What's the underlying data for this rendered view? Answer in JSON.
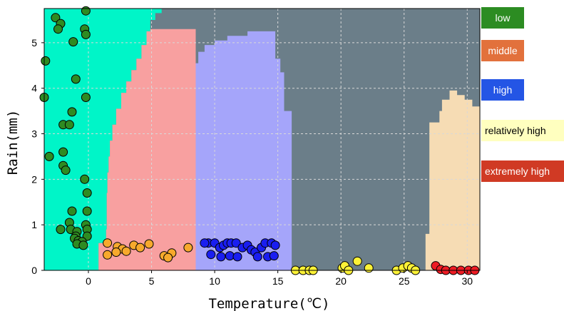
{
  "chart_data": {
    "type": "scatter",
    "title": "",
    "xlabel": "Temperature(℃)",
    "ylabel": "Rain(mm)",
    "xlim": [
      -3.5,
      31
    ],
    "ylim": [
      0,
      5.75
    ],
    "xticks": [
      0,
      5,
      10,
      15,
      20,
      25,
      30
    ],
    "yticks": [
      0,
      1,
      2,
      3,
      4,
      5
    ],
    "grid": true,
    "background_color": "#6b7e89",
    "legend": "right",
    "regions": [
      {
        "name": "low",
        "color": "#00f5c8",
        "boundary": [
          [
            -3.5,
            0
          ],
          [
            -3.5,
            5.75
          ],
          [
            5.8,
            5.75
          ],
          [
            5.8,
            5.65
          ],
          [
            5.3,
            5.65
          ],
          [
            5.3,
            5.5
          ],
          [
            4.9,
            5.5
          ],
          [
            4.9,
            5.25
          ],
          [
            4.6,
            5.25
          ],
          [
            4.6,
            4.95
          ],
          [
            4.2,
            4.95
          ],
          [
            4.2,
            4.65
          ],
          [
            3.8,
            4.65
          ],
          [
            3.8,
            4.4
          ],
          [
            3.4,
            4.4
          ],
          [
            3.4,
            4.15
          ],
          [
            3.0,
            4.15
          ],
          [
            3.0,
            3.9
          ],
          [
            2.6,
            3.9
          ],
          [
            2.6,
            3.55
          ],
          [
            2.2,
            3.55
          ],
          [
            2.2,
            3.2
          ],
          [
            1.9,
            3.2
          ],
          [
            1.9,
            2.85
          ],
          [
            1.7,
            2.85
          ],
          [
            1.7,
            2.5
          ],
          [
            1.6,
            2.5
          ],
          [
            1.6,
            2.15
          ],
          [
            1.5,
            2.15
          ],
          [
            1.5,
            1.7
          ],
          [
            1.45,
            1.7
          ],
          [
            1.45,
            0.9
          ],
          [
            1.4,
            0.9
          ],
          [
            1.4,
            0.6
          ],
          [
            0.8,
            0.6
          ],
          [
            0.8,
            0
          ]
        ]
      },
      {
        "name": "middle",
        "color": "#f8a0a0",
        "boundary": [
          [
            0.8,
            0
          ],
          [
            0.8,
            0.6
          ],
          [
            1.4,
            0.6
          ],
          [
            1.4,
            0.9
          ],
          [
            1.45,
            0.9
          ],
          [
            1.45,
            1.7
          ],
          [
            1.5,
            1.7
          ],
          [
            1.5,
            2.15
          ],
          [
            1.6,
            2.15
          ],
          [
            1.6,
            2.5
          ],
          [
            1.7,
            2.5
          ],
          [
            1.7,
            2.85
          ],
          [
            1.9,
            2.85
          ],
          [
            1.9,
            3.2
          ],
          [
            2.2,
            3.2
          ],
          [
            2.2,
            3.55
          ],
          [
            2.6,
            3.55
          ],
          [
            2.6,
            3.9
          ],
          [
            3.0,
            3.9
          ],
          [
            3.0,
            4.15
          ],
          [
            3.4,
            4.15
          ],
          [
            3.4,
            4.4
          ],
          [
            3.8,
            4.4
          ],
          [
            3.8,
            4.65
          ],
          [
            4.2,
            4.65
          ],
          [
            4.2,
            4.95
          ],
          [
            4.6,
            4.95
          ],
          [
            4.6,
            5.25
          ],
          [
            4.9,
            5.25
          ],
          [
            4.9,
            5.3
          ],
          [
            8.5,
            5.3
          ],
          [
            8.5,
            0
          ]
        ]
      },
      {
        "name": "high",
        "color": "#a5a5fa",
        "boundary": [
          [
            8.5,
            0
          ],
          [
            8.5,
            4.55
          ],
          [
            8.7,
            4.55
          ],
          [
            8.7,
            4.8
          ],
          [
            9.2,
            4.8
          ],
          [
            9.2,
            4.95
          ],
          [
            10.0,
            4.95
          ],
          [
            10.0,
            5.05
          ],
          [
            11.0,
            5.05
          ],
          [
            11.0,
            5.15
          ],
          [
            12.6,
            5.15
          ],
          [
            12.6,
            5.25
          ],
          [
            14.8,
            5.25
          ],
          [
            14.8,
            4.65
          ],
          [
            15.2,
            4.65
          ],
          [
            15.2,
            4.35
          ],
          [
            15.5,
            4.35
          ],
          [
            15.5,
            3.5
          ],
          [
            16.1,
            3.5
          ],
          [
            16.1,
            0
          ]
        ]
      },
      {
        "name": "extremely high",
        "color": "#f6dcb4",
        "boundary": [
          [
            26.7,
            0
          ],
          [
            26.7,
            0.8
          ],
          [
            27.0,
            0.8
          ],
          [
            27.0,
            3.25
          ],
          [
            27.8,
            3.25
          ],
          [
            27.8,
            3.5
          ],
          [
            28.0,
            3.5
          ],
          [
            28.0,
            3.75
          ],
          [
            28.6,
            3.75
          ],
          [
            28.6,
            3.95
          ],
          [
            29.2,
            3.95
          ],
          [
            29.2,
            3.85
          ],
          [
            29.8,
            3.85
          ],
          [
            29.8,
            3.75
          ],
          [
            30.4,
            3.75
          ],
          [
            30.4,
            3.6
          ],
          [
            31,
            3.6
          ],
          [
            31,
            0
          ]
        ]
      }
    ],
    "series": [
      {
        "name": "low",
        "color": "#2e8b22",
        "points": [
          [
            -0.2,
            5.7
          ],
          [
            -2.6,
            5.55
          ],
          [
            -2.2,
            5.42
          ],
          [
            -2.4,
            5.3
          ],
          [
            -0.3,
            5.3
          ],
          [
            -0.2,
            5.18
          ],
          [
            -1.2,
            5.02
          ],
          [
            -3.4,
            4.6
          ],
          [
            -1.0,
            4.2
          ],
          [
            -3.5,
            3.8
          ],
          [
            -0.2,
            3.8
          ],
          [
            -1.3,
            3.48
          ],
          [
            -2.0,
            3.2
          ],
          [
            -1.5,
            3.2
          ],
          [
            -3.1,
            2.5
          ],
          [
            -2.0,
            2.6
          ],
          [
            -2.0,
            2.3
          ],
          [
            -1.8,
            2.2
          ],
          [
            -0.3,
            2.0
          ],
          [
            -0.1,
            1.7
          ],
          [
            -0.1,
            1.3
          ],
          [
            -1.3,
            1.3
          ],
          [
            -1.5,
            1.05
          ],
          [
            -0.2,
            1.0
          ],
          [
            -2.2,
            0.9
          ],
          [
            -1.4,
            0.9
          ],
          [
            -0.1,
            0.9
          ],
          [
            -0.9,
            0.85
          ],
          [
            -1.0,
            0.75
          ],
          [
            -0.1,
            0.75
          ],
          [
            -1.1,
            0.7
          ],
          [
            -0.8,
            0.65
          ],
          [
            -0.5,
            0.63
          ],
          [
            -0.9,
            0.58
          ],
          [
            -0.4,
            0.55
          ]
        ]
      },
      {
        "name": "middle",
        "color": "#f7a92c",
        "points": [
          [
            1.5,
            0.6
          ],
          [
            2.3,
            0.52
          ],
          [
            2.7,
            0.47
          ],
          [
            3.0,
            0.42
          ],
          [
            3.6,
            0.55
          ],
          [
            4.1,
            0.5
          ],
          [
            4.8,
            0.58
          ],
          [
            1.5,
            0.34
          ],
          [
            2.2,
            0.4
          ],
          [
            6.0,
            0.32
          ],
          [
            6.6,
            0.38
          ],
          [
            6.3,
            0.28
          ],
          [
            7.9,
            0.5
          ]
        ]
      },
      {
        "name": "high",
        "color": "#1a1ef0",
        "points": [
          [
            9.5,
            0.6
          ],
          [
            10.0,
            0.6
          ],
          [
            10.4,
            0.5
          ],
          [
            10.7,
            0.55
          ],
          [
            11.0,
            0.6
          ],
          [
            11.3,
            0.6
          ],
          [
            11.7,
            0.6
          ],
          [
            12.2,
            0.5
          ],
          [
            12.6,
            0.55
          ],
          [
            12.9,
            0.45
          ],
          [
            13.2,
            0.4
          ],
          [
            13.7,
            0.5
          ],
          [
            14.0,
            0.6
          ],
          [
            14.5,
            0.6
          ],
          [
            14.8,
            0.55
          ],
          [
            9.7,
            0.35
          ],
          [
            10.5,
            0.3
          ],
          [
            11.2,
            0.32
          ],
          [
            11.8,
            0.3
          ],
          [
            13.4,
            0.3
          ],
          [
            14.2,
            0.3
          ],
          [
            14.7,
            0.32
          ],
          [
            9.2,
            0.6
          ]
        ]
      },
      {
        "name": "relatively high",
        "color": "#fdf236",
        "points": [
          [
            16.4,
            0.0
          ],
          [
            17.0,
            0.0
          ],
          [
            17.5,
            0.0
          ],
          [
            17.8,
            0.0
          ],
          [
            20.1,
            0.05
          ],
          [
            20.3,
            0.1
          ],
          [
            20.6,
            0.0
          ],
          [
            21.3,
            0.2
          ],
          [
            22.2,
            0.05
          ],
          [
            24.4,
            0.0
          ],
          [
            24.9,
            0.05
          ],
          [
            25.3,
            0.1
          ],
          [
            25.6,
            0.05
          ],
          [
            25.9,
            0.0
          ]
        ]
      },
      {
        "name": "extremely high",
        "color": "#ee1c24",
        "points": [
          [
            27.5,
            0.1
          ],
          [
            27.9,
            0.02
          ],
          [
            28.3,
            0.0
          ],
          [
            28.9,
            0.0
          ],
          [
            29.5,
            0.0
          ],
          [
            30.1,
            0.0
          ],
          [
            30.6,
            0.0
          ]
        ]
      }
    ]
  },
  "legend": [
    {
      "label": "low",
      "bg": "#2c8c22",
      "fg": "#ffffff"
    },
    {
      "label": "middle",
      "bg": "#e2713c",
      "fg": "#ffffff"
    },
    {
      "label": "high",
      "bg": "#2455e5",
      "fg": "#ffffff"
    },
    {
      "label": "relatively high",
      "bg": "#ffffbf",
      "fg": "#000000"
    },
    {
      "label": "extremely high",
      "bg": "#d03a24",
      "fg": "#ffffff"
    }
  ]
}
